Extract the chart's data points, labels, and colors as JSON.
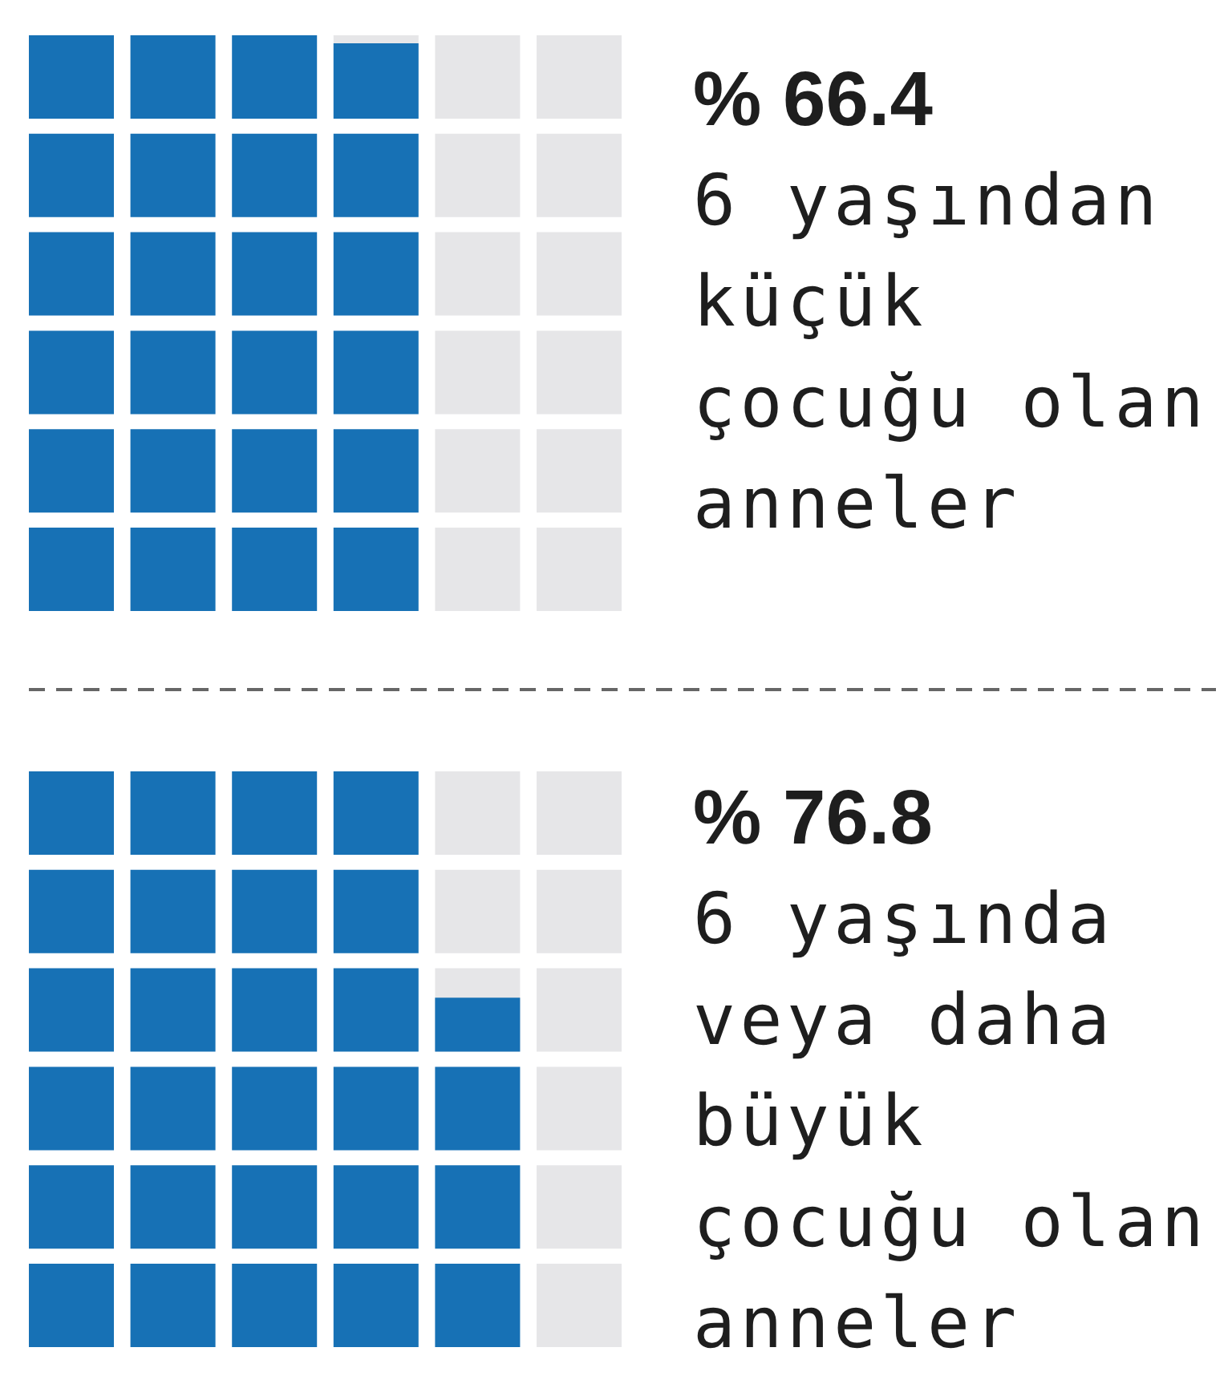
{
  "chart_data": [
    {
      "type": "other",
      "categories": [
        "6 yaşından küçük çocuğu olan anneler"
      ],
      "values": [
        66.4
      ],
      "value_labels": [
        "% 66.4"
      ],
      "colors": [
        "#1771b5"
      ]
    },
    {
      "type": "other",
      "categories": [
        "6 yaşında veya daha büyük çocuğu olan anneler"
      ],
      "values": [
        76.8
      ],
      "value_labels": [
        "% 76.8"
      ],
      "colors": [
        "#1771b5"
      ]
    }
  ]
}
